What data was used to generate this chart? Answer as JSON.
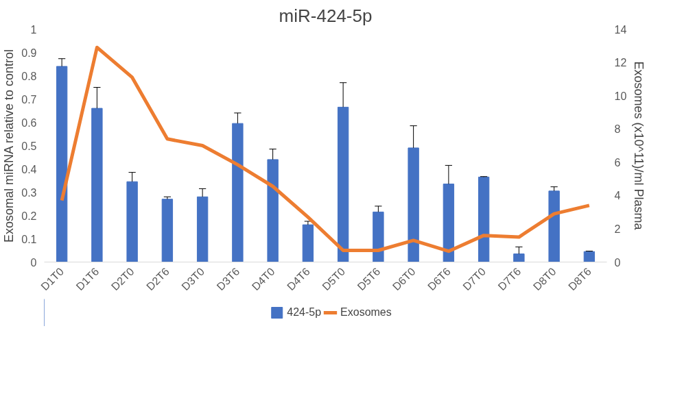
{
  "chart_data": {
    "type": "bar",
    "title": "miR-424-5p",
    "ylabel": "Exosomal miRNA relative to control",
    "y2label": "Exosomes (x10^11)/ml Plasma",
    "categories": [
      "D1T0",
      "D1T6",
      "D2T0",
      "D2T6",
      "D3T0",
      "D3T6",
      "D4T0",
      "D4T6",
      "D5T0",
      "D5T6",
      "D6T0",
      "D6T6",
      "D7T0",
      "D7T6",
      "D8T0",
      "D8T6"
    ],
    "series": [
      {
        "name": "424-5p",
        "color": "#4472c4",
        "values": [
          0.84,
          0.66,
          0.345,
          0.27,
          0.28,
          0.595,
          0.44,
          0.16,
          0.665,
          0.215,
          0.49,
          0.335,
          0.365,
          0.035,
          0.305,
          0.045
        ],
        "errors": [
          [
            0.84,
            0.873
          ],
          [
            0.66,
            0.75
          ],
          [
            0.345,
            0.385
          ],
          [
            0.27,
            0.28
          ],
          [
            0.28,
            0.315
          ],
          [
            0.595,
            0.64
          ],
          [
            0.44,
            0.485
          ],
          [
            0.16,
            0.175
          ],
          [
            0.665,
            0.77
          ],
          [
            0.215,
            0.24
          ],
          [
            0.49,
            0.585
          ],
          [
            0.335,
            0.415
          ],
          [
            0.365,
            0.367
          ],
          [
            0.035,
            0.065
          ],
          [
            0.305,
            0.323
          ],
          [
            0.045,
            0.047
          ]
        ]
      },
      {
        "name": "Exosomes",
        "type": "line",
        "axis": "y2",
        "color": "#ed7d31",
        "values": [
          3.7,
          12.9,
          11.1,
          7.4,
          7.0,
          5.85,
          4.55,
          2.7,
          0.7,
          0.7,
          1.3,
          0.65,
          1.6,
          1.5,
          2.9,
          3.4
        ]
      }
    ],
    "ylim": [
      0,
      1
    ],
    "yticks": [
      0,
      0.1,
      0.2,
      0.3,
      0.4,
      0.5,
      0.6,
      0.7,
      0.8,
      0.9,
      1
    ],
    "y2lim": [
      0,
      14
    ],
    "y2ticks": [
      0,
      2,
      4,
      6,
      8,
      10,
      12,
      14
    ],
    "grid": false,
    "legend": "bottom",
    "marker": "none",
    "line_style": "solid"
  }
}
